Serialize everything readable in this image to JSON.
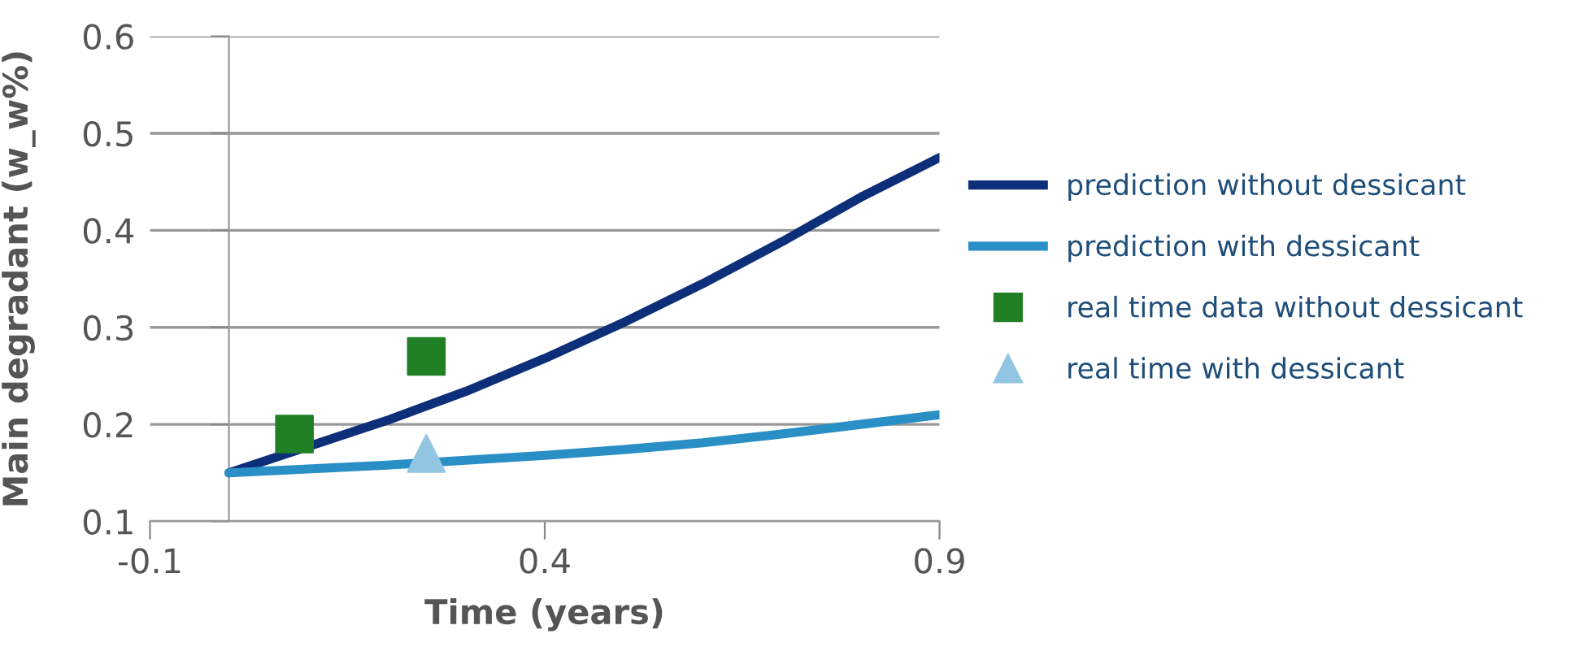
{
  "chart_data": {
    "type": "line",
    "xlabel": "Time (years)",
    "ylabel": "Main degradant (w_w%)",
    "xlim": [
      -0.1,
      0.9
    ],
    "xticks": [
      -0.1,
      0.4,
      0.9
    ],
    "ylim": [
      0.1,
      0.6
    ],
    "yticks": [
      0.1,
      0.2,
      0.3,
      0.4,
      0.5,
      0.6
    ],
    "grid": "y",
    "legend": "right",
    "series": [
      {
        "name": "prediction without dessicant",
        "color": "#0d2f7a",
        "marker": "none",
        "x": [
          0,
          0.1,
          0.2,
          0.3,
          0.4,
          0.5,
          0.6,
          0.7,
          0.8,
          0.9
        ],
        "values": [
          0.15,
          0.177,
          0.204,
          0.234,
          0.268,
          0.305,
          0.345,
          0.388,
          0.434,
          0.475
        ]
      },
      {
        "name": "prediction with dessicant",
        "color": "#2a8fc4",
        "marker": "none",
        "x": [
          0,
          0.1,
          0.2,
          0.3,
          0.4,
          0.5,
          0.6,
          0.7,
          0.8,
          0.9
        ],
        "values": [
          0.15,
          0.154,
          0.158,
          0.163,
          0.168,
          0.174,
          0.181,
          0.19,
          0.2,
          0.21
        ]
      },
      {
        "name": "real time data without dessicant",
        "type": "scatter",
        "color": "#217f25",
        "marker": "square",
        "x": [
          0.083,
          0.25
        ],
        "values": [
          0.19,
          0.27
        ]
      },
      {
        "name": "real time with dessicant",
        "type": "scatter",
        "color": "#92c5e2",
        "marker": "triangle",
        "x": [
          0.25
        ],
        "values": [
          0.17
        ]
      }
    ]
  }
}
